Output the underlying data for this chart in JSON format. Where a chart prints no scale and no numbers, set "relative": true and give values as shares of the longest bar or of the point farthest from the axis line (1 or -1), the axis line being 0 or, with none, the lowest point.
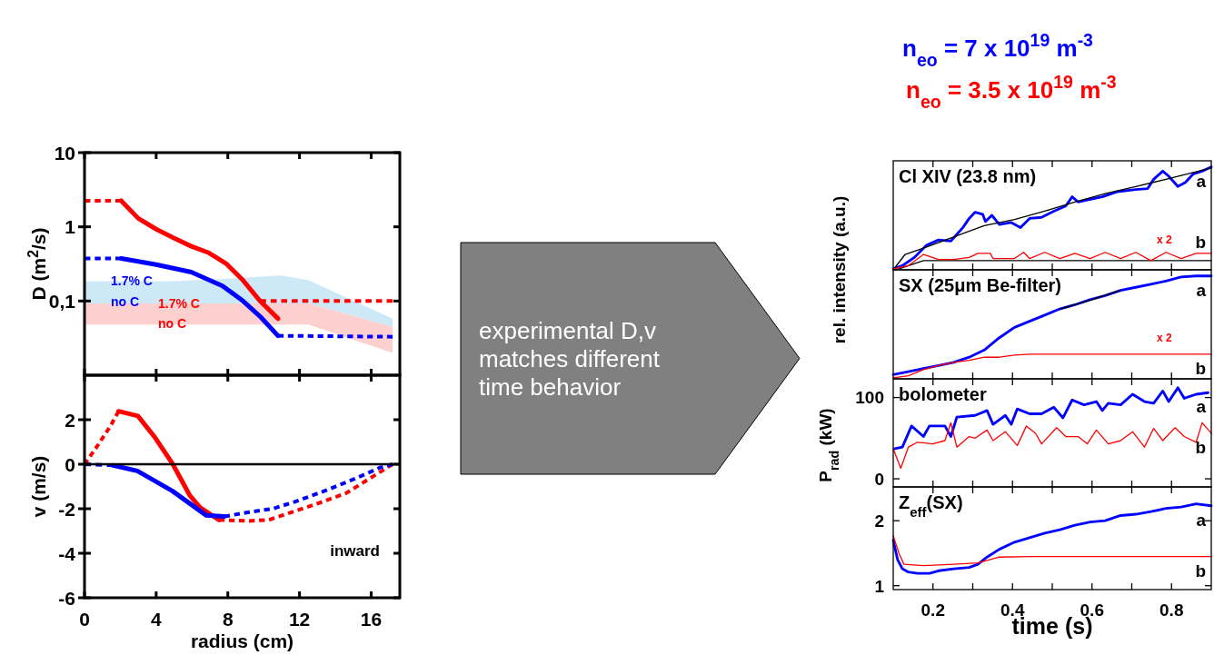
{
  "chart_data": [
    {
      "type": "line",
      "ylabel": "D (m$^{2}$/s)",
      "log": "y",
      "xlim": [
        0,
        17.6
      ],
      "xticks": [
        0,
        4,
        8,
        12,
        16
      ],
      "ylim": [
        0.01,
        10
      ],
      "yticks": [
        10,
        1,
        {
          "value": 0.1,
          "label": "0,1"
        }
      ],
      "tick_labels": "y",
      "series": [
        {
          "color": "#cde9f8",
          "x": [
            0,
            5,
            8,
            11,
            12.5,
            17.2
          ],
          "values": [
            null,
            null,
            null,
            null,
            null,
            null
          ],
          "upper": [
            0.185,
            0.185,
            0.2,
            0.22,
            0.19,
            0.058
          ],
          "lower": [
            0.093,
            0.093,
            0.093,
            0.093,
            0.093,
            0.045
          ]
        },
        {
          "color": "#fdd0d0",
          "x": [
            0,
            12.5,
            17.2
          ],
          "values": [
            null,
            null,
            null
          ],
          "upper": [
            0.093,
            0.093,
            0.045
          ],
          "lower": [
            0.048,
            0.048,
            0.02
          ]
        },
        {
          "color": "#ff0000",
          "line_style": "dashed",
          "x": [
            0,
            2.05
          ],
          "values": [
            2.25,
            2.25
          ]
        },
        {
          "color": "#ff0000",
          "line_style": "solid",
          "x": [
            2.05,
            3.0,
            4.0,
            4.96,
            5.93,
            6.9,
            7.9,
            8.85,
            9.8,
            10.8
          ],
          "values": [
            2.25,
            1.3,
            0.93,
            0.71,
            0.55,
            0.45,
            0.32,
            0.19,
            0.1,
            0.058
          ]
        },
        {
          "color": "#ff0000",
          "line_style": "dashed",
          "x": [
            9.8,
            17.2
          ],
          "values": [
            0.1,
            0.1
          ]
        },
        {
          "color": "#0000ff",
          "line_style": "dashed",
          "x": [
            0,
            2.05
          ],
          "values": [
            0.375,
            0.375
          ]
        },
        {
          "color": "#0000ff",
          "line_style": "solid",
          "x": [
            2.05,
            4.0,
            5.96,
            7.7,
            8.85,
            9.8,
            10.8
          ],
          "values": [
            0.375,
            0.31,
            0.245,
            0.16,
            0.1,
            0.062,
            0.034
          ]
        },
        {
          "color": "#0000ff",
          "line_style": "dashed",
          "x": [
            10.8,
            17.2
          ],
          "values": [
            0.034,
            0.033
          ]
        }
      ],
      "annotations": [
        "1.7% C",
        "no C",
        "1.7% C",
        "no C"
      ]
    },
    {
      "type": "line",
      "xlabel": "radius (cm)",
      "ylabel": "v (m/s)",
      "xlim": [
        0,
        17.6
      ],
      "xticks": [
        0,
        4,
        8,
        12,
        16
      ],
      "ylim": [
        -6,
        4
      ],
      "yticks": [
        2,
        0,
        -2,
        -4,
        -6
      ],
      "ref_lines": [
        {
          "axis": "y",
          "value": 0,
          "color": "#000000"
        }
      ],
      "series": [
        {
          "color": "#ff0000",
          "line_style": "dashed",
          "x": [
            0,
            0.76,
            1.45,
            1.9
          ],
          "values": [
            0,
            0.87,
            1.72,
            2.38
          ]
        },
        {
          "color": "#ff0000",
          "line_style": "solid",
          "x": [
            1.9,
            2.98,
            3.91,
            4.93,
            5.86,
            6.45,
            7.5
          ],
          "values": [
            2.38,
            2.17,
            1.23,
            0,
            -1.38,
            -1.94,
            -2.5
          ]
        },
        {
          "color": "#ff0000",
          "line_style": "dashed",
          "x": [
            7.5,
            9.16,
            10.3,
            11.4,
            12.9,
            14.6,
            16,
            17.2
          ],
          "values": [
            -2.5,
            -2.55,
            -2.5,
            -2.2,
            -1.8,
            -1.3,
            -0.6,
            0
          ]
        },
        {
          "color": "#0000ff",
          "line_style": "dashed",
          "x": [
            0,
            1.6
          ],
          "values": [
            0,
            -0.05
          ]
        },
        {
          "color": "#0000ff",
          "line_style": "solid",
          "x": [
            1.6,
            2.95,
            4.9,
            6.8,
            7.8
          ],
          "values": [
            -0.05,
            -0.3,
            -1.2,
            -2.3,
            -2.35
          ]
        },
        {
          "color": "#0000ff",
          "line_style": "dashed",
          "x": [
            7.8,
            9.2,
            10.5,
            11.7,
            13.4,
            15.1,
            16.5,
            17.2
          ],
          "values": [
            -2.35,
            -2.15,
            -2.0,
            -1.7,
            -1.2,
            -0.65,
            -0.15,
            0
          ]
        }
      ],
      "annotations": [
        "inward"
      ]
    },
    {
      "type": "other",
      "annotations": [
        "experimental D,v matches different time behavior"
      ]
    },
    {
      "type": "line",
      "relative": true,
      "title": "Cl XIV (23.8 nm)",
      "ylabel": "rel. intensity (a.u.)",
      "xlim": [
        0.1,
        0.9
      ],
      "xticks": [
        0.2,
        {
          "value": 0.3,
          "label": null
        },
        0.4,
        {
          "value": 0.5,
          "label": null
        },
        0.6,
        {
          "value": 0.7,
          "label": null
        },
        0.8
      ],
      "tick_labels": false,
      "series": [
        {
          "name": "a",
          "color": "#0000ff",
          "x": [
            0.1,
            0.123,
            0.153,
            0.184,
            0.214,
            0.245,
            0.275,
            0.291,
            0.306,
            0.325,
            0.332,
            0.348,
            0.367,
            0.397,
            0.42,
            0.443,
            0.473,
            0.504,
            0.534,
            0.55,
            0.565,
            0.588,
            0.626,
            0.664,
            0.71,
            0.74,
            0.755,
            0.778,
            0.793,
            0.816,
            0.835,
            0.854,
            0.877,
            0.9
          ],
          "values": [
            0.01,
            0.04,
            0.12,
            0.24,
            0.29,
            0.28,
            0.41,
            0.5,
            0.56,
            0.54,
            0.47,
            0.53,
            0.44,
            0.46,
            0.41,
            0.5,
            0.51,
            0.57,
            0.62,
            0.71,
            0.66,
            0.68,
            0.71,
            0.76,
            0.78,
            0.79,
            0.88,
            0.96,
            0.91,
            0.81,
            0.85,
            0.93,
            0.96,
            1
          ]
        },
        {
          "color": "#000000",
          "x": [
            0.1,
            0.13,
            0.176,
            0.252,
            0.329,
            0.405,
            0.481,
            0.557,
            0.633,
            0.71,
            0.786,
            0.9
          ],
          "values": [
            0,
            0.15,
            0.21,
            0.32,
            0.43,
            0.49,
            0.57,
            0.66,
            0.74,
            0.81,
            0.88,
            0.99
          ]
        },
        {
          "color": "#000000",
          "x": [
            0.115,
            0.176,
            0.9
          ],
          "values": [
            0.01,
            0.09,
            0.09
          ]
        },
        {
          "name": "b",
          "color": "#ff0000",
          "x": [
            0.1,
            0.138,
            0.176,
            0.214,
            0.252,
            0.291,
            0.313,
            0.344,
            0.351,
            0.405,
            0.428,
            0.443,
            0.481,
            0.519,
            0.557,
            0.595,
            0.633,
            0.672,
            0.71,
            0.748,
            0.786,
            0.824,
            0.862,
            0.9
          ],
          "values": [
            0.01,
            0.04,
            0.15,
            0.1,
            0.1,
            0.12,
            0.16,
            0.16,
            0.11,
            0.11,
            0.17,
            0.11,
            0.17,
            0.11,
            0.16,
            0.11,
            0.17,
            0.11,
            0.17,
            0.09,
            0.17,
            0.11,
            0.16,
            0.16
          ]
        }
      ],
      "annotations": [
        "n$_{eo}$ = 7 x 10$^{19}$ m$^{-3}$",
        "n$_{eo}$ = 3.5 x 10$^{19}$ m$^{-3}$",
        "x 2"
      ]
    },
    {
      "type": "line",
      "relative": true,
      "title": "SX (25μm Be-filter)",
      "xlim": [
        0.1,
        0.9
      ],
      "xticks": [
        0.2,
        {
          "value": 0.3,
          "label": null
        },
        0.4,
        {
          "value": 0.5,
          "label": null
        },
        0.6,
        {
          "value": 0.7,
          "label": null
        },
        0.8
      ],
      "tick_labels": false,
      "series": [
        {
          "name": "a",
          "color": "#0000ff",
          "x": [
            0.1,
            0.138,
            0.176,
            0.214,
            0.252,
            0.291,
            0.329,
            0.367,
            0.405,
            0.443,
            0.481,
            0.519,
            0.557,
            0.595,
            0.633,
            0.672,
            0.71,
            0.748,
            0.786,
            0.824,
            0.862,
            0.9
          ],
          "values": [
            0.04,
            0.07,
            0.1,
            0.13,
            0.16,
            0.21,
            0.28,
            0.4,
            0.5,
            0.56,
            0.62,
            0.68,
            0.72,
            0.77,
            0.81,
            0.86,
            0.89,
            0.92,
            0.95,
            0.99,
            1,
            1
          ]
        },
        {
          "color": "#000000",
          "x": [
            0.52,
            0.6,
            0.67
          ],
          "values": [
            0.68,
            0.77,
            0.86
          ]
        },
        {
          "name": "b",
          "color": "#ff0000",
          "x": [
            0.1,
            0.138,
            0.176,
            0.214,
            0.252,
            0.291,
            0.329,
            0.367,
            0.405,
            0.443,
            0.9
          ],
          "values": [
            0.01,
            0.03,
            0.09,
            0.13,
            0.16,
            0.18,
            0.21,
            0.21,
            0.23,
            0.24,
            0.24
          ]
        }
      ],
      "annotations": [
        "x 2"
      ]
    },
    {
      "type": "line",
      "title": "bolometer",
      "ylabel": "P$_{rad}$ (kW)",
      "xlim": [
        0.1,
        0.9
      ],
      "xticks": [
        0.2,
        {
          "value": 0.3,
          "label": null
        },
        0.4,
        {
          "value": 0.5,
          "label": null
        },
        0.6,
        {
          "value": 0.7,
          "label": null
        },
        0.8
      ],
      "ylim": [
        -10,
        123
      ],
      "yticks": [
        0,
        100
      ],
      "tick_labels": "y",
      "series": [
        {
          "name": "a",
          "color": "#0000ff",
          "x": [
            0.104,
            0.123,
            0.146,
            0.176,
            0.191,
            0.23,
            0.245,
            0.26,
            0.306,
            0.336,
            0.351,
            0.382,
            0.397,
            0.412,
            0.443,
            0.473,
            0.504,
            0.527,
            0.55,
            0.58,
            0.611,
            0.626,
            0.641,
            0.672,
            0.702,
            0.732,
            0.755,
            0.778,
            0.793,
            0.816,
            0.832,
            0.862,
            0.892
          ],
          "values": [
            37,
            39,
            65,
            52,
            65,
            65,
            52,
            76,
            78,
            84,
            67,
            78,
            67,
            86,
            80,
            80,
            88,
            75,
            97,
            91,
            95,
            84,
            93,
            91,
            104,
            95,
            93,
            108,
            95,
            112,
            99,
            104,
            106
          ]
        },
        {
          "name": "b",
          "color": "#ff0000",
          "x": [
            0.1,
            0.119,
            0.138,
            0.161,
            0.199,
            0.23,
            0.245,
            0.26,
            0.291,
            0.306,
            0.336,
            0.351,
            0.382,
            0.412,
            0.435,
            0.458,
            0.473,
            0.511,
            0.534,
            0.565,
            0.588,
            0.611,
            0.641,
            0.672,
            0.702,
            0.732,
            0.755,
            0.778,
            0.809,
            0.832,
            0.862,
            0.877,
            0.9
          ],
          "values": [
            37,
            13,
            39,
            45,
            43,
            47,
            69,
            39,
            52,
            50,
            60,
            47,
            58,
            41,
            65,
            56,
            43,
            63,
            52,
            52,
            43,
            60,
            43,
            47,
            58,
            39,
            62,
            47,
            63,
            52,
            45,
            69,
            56
          ]
        }
      ]
    },
    {
      "type": "line",
      "title": "Z$_{eff}$(SX)",
      "xlabel": "time (s)",
      "xlim": [
        0.1,
        0.9
      ],
      "xticks": [
        0.2,
        {
          "value": 0.3,
          "label": null
        },
        0.4,
        {
          "value": 0.5,
          "label": null
        },
        0.6,
        {
          "value": 0.7,
          "label": null
        },
        0.8
      ],
      "ylim": [
        0.94,
        2.52
      ],
      "yticks": [
        1,
        2
      ],
      "series": [
        {
          "name": "a",
          "color": "#0000ff",
          "x": [
            0.1,
            0.111,
            0.123,
            0.138,
            0.161,
            0.191,
            0.214,
            0.252,
            0.291,
            0.313,
            0.336,
            0.367,
            0.405,
            0.443,
            0.481,
            0.519,
            0.557,
            0.595,
            0.633,
            0.672,
            0.71,
            0.748,
            0.786,
            0.824,
            0.862,
            0.9
          ],
          "values": [
            1.7,
            1.4,
            1.26,
            1.21,
            1.19,
            1.19,
            1.23,
            1.26,
            1.28,
            1.33,
            1.44,
            1.56,
            1.67,
            1.74,
            1.81,
            1.86,
            1.93,
            1.98,
            2.0,
            2.08,
            2.1,
            2.14,
            2.19,
            2.21,
            2.26,
            2.23
          ]
        },
        {
          "name": "b",
          "color": "#ff0000",
          "x": [
            0.1,
            0.115,
            0.127,
            0.176,
            0.252,
            0.313,
            0.367,
            0.443,
            0.9
          ],
          "values": [
            1.77,
            1.49,
            1.33,
            1.31,
            1.33,
            1.35,
            1.44,
            1.45,
            1.45
          ]
        }
      ]
    }
  ]
}
